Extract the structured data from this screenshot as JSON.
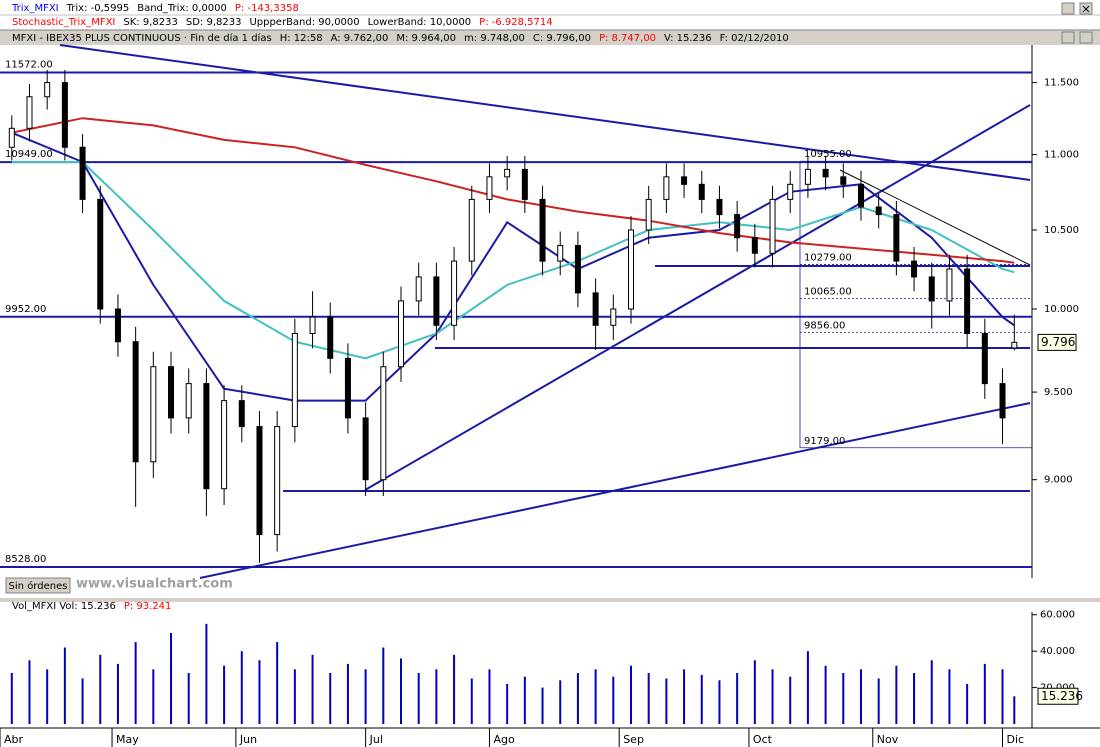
{
  "header": {
    "rows": [
      [
        {
          "text": "Trix_MFXI",
          "color": "#0000ff"
        },
        {
          "text": "Trix: -0,5995",
          "color": "#000000"
        },
        {
          "text": "Band_Trix: 0,0000",
          "color": "#000000"
        },
        {
          "text": "P: -143,3358",
          "color": "#ff0000"
        }
      ],
      [
        {
          "text": "Stochastic_Trix_MFXI",
          "color": "#ff0000"
        },
        {
          "text": "SK: 9,8233",
          "color": "#000000"
        },
        {
          "text": "SD: 9,8233",
          "color": "#000000"
        },
        {
          "text": "UppperBand: 90,0000",
          "color": "#000000"
        },
        {
          "text": "LowerBand: 10,0000",
          "color": "#000000"
        },
        {
          "text": "P: -6.928,5714",
          "color": "#ff0000"
        }
      ],
      [
        {
          "text": "MFXI - IBEX35 PLUS CONTINUOUS · Fin de día 1 días",
          "color": "#000000"
        },
        {
          "text": "H: 12:58",
          "color": "#000000"
        },
        {
          "text": "A: 9.762,00",
          "color": "#000000"
        },
        {
          "text": "M: 9.964,00",
          "color": "#000000"
        },
        {
          "text": "m: 9.748,00",
          "color": "#000000"
        },
        {
          "text": "C: 9.796,00",
          "color": "#000000"
        },
        {
          "text": "P: 8.747,00",
          "color": "#ff0000"
        },
        {
          "text": "V: 15.236",
          "color": "#000000"
        },
        {
          "text": "F: 02/12/2010",
          "color": "#000000"
        }
      ]
    ]
  },
  "status": {
    "orders": "Sin órdenes",
    "watermark": "www.visualchart.com"
  },
  "chart_data": [
    {
      "type": "candlestick",
      "x": [
        0,
        3,
        6,
        9,
        12,
        15,
        18,
        21,
        24,
        27,
        30,
        33,
        36,
        39,
        42,
        45,
        48,
        51,
        54,
        57,
        60,
        63,
        66,
        69,
        72,
        75,
        78,
        81,
        84,
        87,
        90,
        93,
        96,
        99,
        102,
        105,
        108,
        111,
        114,
        117,
        120,
        123,
        126,
        129,
        132,
        135,
        138,
        141,
        144,
        147,
        150,
        153,
        156,
        159,
        162,
        165,
        168,
        170
      ],
      "open": [
        11050,
        11180,
        11400,
        11500,
        11050,
        10700,
        10000,
        9800,
        9100,
        9650,
        9350,
        9550,
        8950,
        9450,
        9300,
        8700,
        9300,
        9850,
        9950,
        9700,
        9350,
        9000,
        9650,
        10050,
        10200,
        9900,
        10300,
        10700,
        10850,
        10900,
        10700,
        10300,
        10400,
        10100,
        9900,
        10000,
        10500,
        10700,
        10850,
        10800,
        10700,
        10600,
        10450,
        10350,
        10700,
        10800,
        10900,
        10850,
        10800,
        10650,
        10600,
        10300,
        10200,
        10050,
        10250,
        9850,
        9550,
        9762
      ],
      "high": [
        11270,
        11490,
        11590,
        11590,
        11140,
        10790,
        10090,
        9890,
        9740,
        9740,
        9640,
        9640,
        9540,
        9540,
        9390,
        9390,
        9940,
        10110,
        10040,
        9790,
        9440,
        9740,
        10140,
        10290,
        10290,
        10390,
        10790,
        10940,
        10990,
        10990,
        10790,
        10490,
        10490,
        10190,
        10090,
        10590,
        10790,
        10940,
        10940,
        10890,
        10790,
        10690,
        10540,
        10790,
        10890,
        10990,
        10990,
        10940,
        10890,
        10740,
        10690,
        10390,
        10290,
        10340,
        10340,
        9940,
        9640,
        9964
      ],
      "low": [
        10960,
        11090,
        11310,
        10960,
        10610,
        9910,
        9710,
        8850,
        9010,
        9260,
        9260,
        8800,
        8860,
        9210,
        8550,
        8610,
        9210,
        9760,
        9610,
        9260,
        8910,
        8910,
        9560,
        9960,
        9810,
        9810,
        10210,
        10610,
        10760,
        10610,
        10210,
        10210,
        10010,
        9750,
        9810,
        9910,
        10410,
        10610,
        10710,
        10610,
        10510,
        10360,
        10260,
        10260,
        10610,
        10710,
        10760,
        10710,
        10560,
        10510,
        10210,
        10110,
        9880,
        9960,
        9760,
        9460,
        9200,
        9748
      ],
      "close": [
        11180,
        11400,
        11500,
        11050,
        10700,
        10000,
        9800,
        9100,
        9650,
        9350,
        9550,
        8950,
        9450,
        9300,
        8700,
        9300,
        9850,
        9950,
        9700,
        9350,
        9000,
        9650,
        10050,
        10200,
        9900,
        10300,
        10700,
        10850,
        10900,
        10700,
        10300,
        10400,
        10100,
        9900,
        10000,
        10500,
        10700,
        10850,
        10800,
        10700,
        10600,
        10450,
        10350,
        10700,
        10800,
        10900,
        10850,
        10800,
        10650,
        10600,
        10300,
        10200,
        10050,
        10250,
        9850,
        9550,
        9350,
        9796
      ],
      "up_color": "#ffffff",
      "down_color": "#000000",
      "lines": [
        {
          "color": "#1a1aa6",
          "x": [
            0,
            12,
            24,
            36,
            48,
            60,
            72,
            84,
            96,
            108,
            120,
            132,
            144,
            156,
            168,
            170
          ],
          "values": [
            11150,
            10950,
            10150,
            9520,
            9450,
            9450,
            9850,
            10550,
            10250,
            10450,
            10500,
            10750,
            10800,
            10450,
            9950,
            9900
          ]
        },
        {
          "color": "#40c0c0",
          "x": [
            0,
            12,
            24,
            36,
            48,
            60,
            72,
            84,
            96,
            108,
            120,
            132,
            144,
            156,
            168,
            170
          ],
          "values": [
            10950,
            10950,
            10500,
            10050,
            9800,
            9700,
            9850,
            10150,
            10300,
            10500,
            10550,
            10500,
            10650,
            10500,
            10250,
            10230
          ]
        },
        {
          "color": "#cc2222",
          "x": [
            0,
            12,
            24,
            36,
            48,
            60,
            72,
            84,
            96,
            108,
            120,
            132,
            144,
            156,
            168,
            170
          ],
          "values": [
            11150,
            11250,
            11200,
            11100,
            11050,
            10930,
            10820,
            10700,
            10620,
            10560,
            10480,
            10420,
            10380,
            10340,
            10300,
            10290
          ]
        }
      ],
      "levels": [
        {
          "value": 11572,
          "label": "11572.00"
        },
        {
          "value": 10949,
          "label": "10949.00"
        },
        {
          "value": 9952,
          "label": "9952.00"
        },
        {
          "value": 8528,
          "label": "8528.00"
        }
      ],
      "fib_levels": [
        {
          "value": 10955,
          "label": "10955.00"
        },
        {
          "value": 10279,
          "label": "10279.00"
        },
        {
          "value": 10065,
          "label": "10065.00"
        },
        {
          "value": 9856,
          "label": "9856.00"
        },
        {
          "value": 9179,
          "label": "9179.00"
        }
      ],
      "last_value": {
        "value": 9796,
        "label": "9.796"
      },
      "xlim": [
        -2,
        173
      ],
      "ylim": [
        8470,
        11770
      ],
      "log_scale": true,
      "yticks": [
        {
          "value": 11500,
          "label": "11.500"
        },
        {
          "value": 11000,
          "label": "11.000"
        },
        {
          "value": 10500,
          "label": "10.500"
        },
        {
          "value": 10000,
          "label": "10.000"
        },
        {
          "value": 9500,
          "label": "9.500"
        },
        {
          "value": 9000,
          "label": "9.000"
        }
      ]
    },
    {
      "type": "bar",
      "header": [
        {
          "text": "Vol_MFXI Vol: 15.236",
          "color": "#000000"
        },
        {
          "text": "P: 93.241",
          "color": "#ff0000"
        }
      ],
      "x": [
        0,
        3,
        6,
        9,
        12,
        15,
        18,
        21,
        24,
        27,
        30,
        33,
        36,
        39,
        42,
        45,
        48,
        51,
        54,
        57,
        60,
        63,
        66,
        69,
        72,
        75,
        78,
        81,
        84,
        87,
        90,
        93,
        96,
        99,
        102,
        105,
        108,
        111,
        114,
        117,
        120,
        123,
        126,
        129,
        132,
        135,
        138,
        141,
        144,
        147,
        150,
        153,
        156,
        159,
        162,
        165,
        168,
        170
      ],
      "values": [
        28000,
        35000,
        30000,
        42000,
        25000,
        38000,
        33000,
        45000,
        30000,
        50000,
        28000,
        55000,
        32000,
        40000,
        35000,
        45000,
        30000,
        38000,
        28000,
        33000,
        30000,
        42000,
        36000,
        28000,
        30000,
        38000,
        25000,
        30000,
        22000,
        26000,
        20000,
        24000,
        28000,
        30000,
        26000,
        32000,
        28000,
        25000,
        30000,
        27000,
        24000,
        28000,
        35000,
        30000,
        26000,
        40000,
        32000,
        28000,
        30000,
        25000,
        32000,
        28000,
        35000,
        30000,
        22000,
        33000,
        30000,
        15236
      ],
      "color": "#0000c0",
      "last_value": {
        "value": 15236,
        "label": "15.236"
      },
      "xlim": [
        -2,
        173
      ],
      "xticks": [
        {
          "value": -2,
          "label": "Abr"
        },
        {
          "value": 17,
          "label": "May"
        },
        {
          "value": 38,
          "label": "Jun"
        },
        {
          "value": 60,
          "label": "Jul"
        },
        {
          "value": 81,
          "label": "Ago"
        },
        {
          "value": 103,
          "label": "Sep"
        },
        {
          "value": 125,
          "label": "Oct"
        },
        {
          "value": 146,
          "label": "Nov"
        },
        {
          "value": 168,
          "label": "Dic"
        }
      ],
      "ylim": [
        0,
        61500
      ],
      "yticks": [
        {
          "value": 20000,
          "label": "20.000"
        },
        {
          "value": 40000,
          "label": "40.000"
        },
        {
          "value": 60000,
          "label": "60.000"
        }
      ]
    }
  ]
}
